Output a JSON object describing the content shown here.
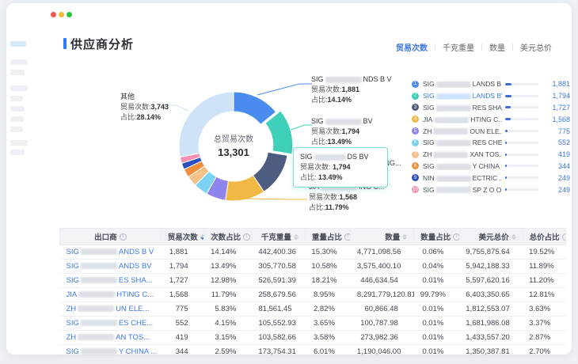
{
  "window_title": "供应商分析",
  "accent_color": "#2f7bf5",
  "link_color": "#3d77e8",
  "traffic_lights": [
    "#f2564d",
    "#f5b935",
    "#2fc43f"
  ],
  "tabs": [
    {
      "key": "trade-count",
      "label": "贸易次数",
      "active": true
    },
    {
      "key": "kg-weight",
      "label": "千克重量",
      "active": false
    },
    {
      "key": "quantity",
      "label": "数量",
      "active": false
    },
    {
      "key": "usd-total",
      "label": "美元总价",
      "active": false
    }
  ],
  "chart_data": {
    "type": "pie",
    "center_label": "总贸易次数",
    "center_value": "13,301",
    "total": 13301,
    "slices": [
      {
        "prefix": "SIG",
        "suffix": "NDS B V",
        "value": 1881,
        "pct": 14.14,
        "color": "#4a8cee"
      },
      {
        "prefix": "SIG",
        "suffix": "BV",
        "value": 1794,
        "pct": 13.49,
        "color": "#3ed0b9",
        "exploded": true
      },
      {
        "prefix": "SIG",
        "suffix": "RES SHA...",
        "value": 1727,
        "pct": 12.98,
        "color": "#4d5c7f"
      },
      {
        "prefix": "JIA",
        "suffix": "ING C...",
        "value": 1568,
        "pct": 11.79,
        "color": "#f2b844"
      },
      {
        "prefix": "ZH",
        "suffix": "OUN ELE...",
        "value": 775,
        "pct": 5.83,
        "color": "#8f83ec"
      },
      {
        "prefix": "SIG",
        "suffix": "RES CHE...",
        "value": 552,
        "pct": 4.15,
        "color": "#7ad3f2"
      },
      {
        "prefix": "ZH",
        "suffix": "XAN TOS...",
        "value": 419,
        "pct": 3.15,
        "color": "#f4c18a"
      },
      {
        "prefix": "SIG",
        "suffix": "Y CHINA ...",
        "value": 344,
        "pct": 2.59,
        "color": "#f0903f"
      },
      {
        "prefix": "NIN",
        "suffix": "ECTRIC ...",
        "value": 249,
        "pct": 1.87,
        "color": "#2a4fc0"
      },
      {
        "prefix": "SIG",
        "suffix": "SP Z O O",
        "value": 249,
        "pct": 1.87,
        "color": "#f490b1"
      },
      {
        "prefix": "",
        "suffix": "其他",
        "value": 3743,
        "pct": 28.14,
        "color": "#cfe3f8"
      }
    ],
    "callouts": {
      "right1": {
        "prefix": "SIG",
        "suffix": "NDS B V",
        "trade_label": "贸易次数:",
        "trade_value": "1,881",
        "pct_label": "占比:",
        "pct_value": "14.14%"
      },
      "right2": {
        "prefix": "SIG",
        "suffix": "BV",
        "trade_label": "贸易次数:",
        "trade_value": "1,794",
        "pct_label": "占比:",
        "pct_value": "13.49%"
      },
      "bottom": {
        "prefix": "JIA",
        "suffix": "ING C...",
        "trade_label": "贸易次数:",
        "trade_value": "1,568",
        "pct_label": "占比:",
        "pct_value": "11.79%"
      },
      "left": {
        "name": "其他",
        "trade_label": "贸易次数:",
        "trade_value": "3,743",
        "pct_label": "占比:",
        "pct_value": "28.14%"
      },
      "hidden_fragment": "SHANG..."
    },
    "tooltip": {
      "prefix": "SIG",
      "suffix": "DS BV",
      "trade_label": "贸易次数:",
      "trade_value": "1,794",
      "pct_label": "占比:",
      "pct_value": "13.49%"
    }
  },
  "ranking": {
    "items": [
      {
        "rank": "1",
        "prefix": "SIG",
        "suffix": "LANDS B V",
        "value": 1881,
        "value_text": "1,881",
        "color": "#4a8cee",
        "selected": false
      },
      {
        "rank": "2",
        "prefix": "SIG",
        "suffix": "LANDS BV",
        "value": 1794,
        "value_text": "1,794",
        "color": "#3ed0b9",
        "selected": true
      },
      {
        "rank": "3",
        "prefix": "SIG",
        "suffix": "RES SHA...",
        "value": 1727,
        "value_text": "1,727",
        "color": "#4d5c7f",
        "selected": false
      },
      {
        "rank": "4",
        "prefix": "JIA",
        "suffix": "HTING C...",
        "value": 1568,
        "value_text": "1,568",
        "color": "#f2b844",
        "selected": false
      },
      {
        "rank": "5",
        "prefix": "ZH",
        "suffix": "OUN ELE...",
        "value": 775,
        "value_text": "775",
        "color": "#8f83ec",
        "selected": false
      },
      {
        "rank": "6",
        "prefix": "SIG",
        "suffix": "RES CHE...",
        "value": 552,
        "value_text": "552",
        "color": "#7ad3f2",
        "selected": false
      },
      {
        "rank": "7",
        "prefix": "ZH",
        "suffix": "XAN TOS...",
        "value": 419,
        "value_text": "419",
        "color": "#f4c18a",
        "selected": false
      },
      {
        "rank": "8",
        "prefix": "SIG",
        "suffix": "Y CHINA ...",
        "value": 344,
        "value_text": "344",
        "color": "#f0903f",
        "selected": false
      },
      {
        "rank": "9",
        "prefix": "NIN",
        "suffix": "ECTRIC ...",
        "value": 249,
        "value_text": "249",
        "color": "#2a4fc0",
        "selected": false
      },
      {
        "rank": "10",
        "prefix": "SIG",
        "suffix": "SP Z O O",
        "value": 249,
        "value_text": "249",
        "color": "#f490b1",
        "selected": false
      }
    ]
  },
  "table": {
    "columns": [
      {
        "key": "exporter",
        "label": "出口商",
        "info": true,
        "sort": false,
        "align": "left",
        "width": "20%"
      },
      {
        "key": "trade-count",
        "label": "贸易次数",
        "info": false,
        "sort": true,
        "sorted": "desc",
        "align": "right",
        "width": "8.5%"
      },
      {
        "key": "count-pct",
        "label": "次数占比",
        "info": true,
        "sort": true,
        "align": "right",
        "width": "9.5%"
      },
      {
        "key": "kg-weight",
        "label": "千克重量",
        "info": false,
        "sort": true,
        "align": "right",
        "width": "10.5%"
      },
      {
        "key": "weight-pct",
        "label": "重量占比",
        "info": true,
        "sort": true,
        "align": "right",
        "width": "9%"
      },
      {
        "key": "quantity",
        "label": "数量",
        "info": false,
        "sort": true,
        "align": "right",
        "width": "12.5%"
      },
      {
        "key": "quantity-pct",
        "label": "数量占比",
        "info": true,
        "sort": true,
        "align": "right",
        "width": "9%"
      },
      {
        "key": "usd-total",
        "label": "美元总价",
        "info": false,
        "sort": true,
        "align": "right",
        "width": "12.5%"
      },
      {
        "key": "total-pct",
        "label": "总价占比",
        "info": true,
        "sort": true,
        "align": "right",
        "width": "8.5%"
      }
    ],
    "rows": [
      {
        "prefix": "SIG",
        "suffix": "ANDS B V",
        "cells": [
          "1,881",
          "14.14%",
          "442,400.36",
          "15.30%",
          "4,771,098.56",
          "0.06%",
          "9,755,875.64",
          "19.52%"
        ]
      },
      {
        "prefix": "SIG",
        "suffix": "ANDS BV",
        "cells": [
          "1,794",
          "13.49%",
          "305,770.58",
          "10.58%",
          "3,575,400.10",
          "0.04%",
          "5,942,188.33",
          "11.89%"
        ]
      },
      {
        "prefix": "SIG",
        "suffix": "ES SHA...",
        "cells": [
          "1,727",
          "12.98%",
          "526,591.39",
          "18.21%",
          "446,634.54",
          "0.01%",
          "5,597,620.16",
          "11.20%"
        ]
      },
      {
        "prefix": "JIA",
        "suffix": "HTING C...",
        "cells": [
          "1,568",
          "11.79%",
          "258,679.56",
          "8.95%",
          "8,291,779,120.81",
          "99.79%",
          "6,403,350.65",
          "12.81%"
        ]
      },
      {
        "prefix": "ZH",
        "suffix": "UN ELE...",
        "cells": [
          "775",
          "5.83%",
          "81,561.45",
          "2.82%",
          "60,866.48",
          "0.01%",
          "1,812,553.07",
          "3.63%"
        ]
      },
      {
        "prefix": "SIG",
        "suffix": "ES CHE...",
        "cells": [
          "552",
          "4.15%",
          "105,552.93",
          "3.65%",
          "100,787.98",
          "0.01%",
          "1,681,986.08",
          "3.37%"
        ]
      },
      {
        "prefix": "ZH",
        "suffix": "AN TOS...",
        "cells": [
          "419",
          "3.15%",
          "103,582.66",
          "3.58%",
          "273,982.36",
          "0.01%",
          "1,433,557.20",
          "2.87%"
        ]
      },
      {
        "prefix": "SIG",
        "suffix": "Y CHINA ...",
        "cells": [
          "344",
          "2.59%",
          "173,754.31",
          "6.01%",
          "1,190,046.00",
          "0.01%",
          "1,350,387.81",
          "2.70%"
        ]
      }
    ]
  }
}
